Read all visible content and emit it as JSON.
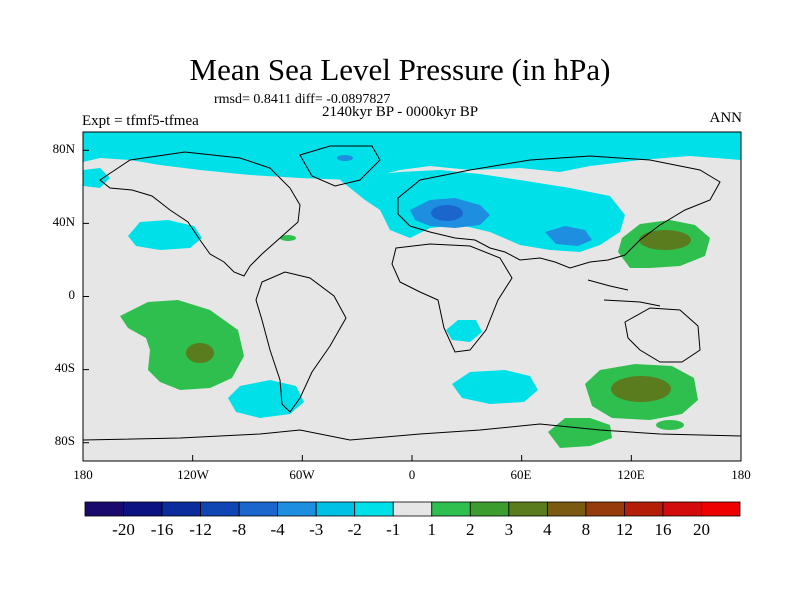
{
  "title": "Mean Sea Level Pressure (in hPa)",
  "stats": "rmsd= 0.8411 diff= -0.0897827",
  "period": "2140kyr BP - 0000kyr BP",
  "experiment": "Expt = tfmf5-tfmea",
  "season": "ANN",
  "map_data": {
    "projection": "cylindrical equidistant",
    "lon_range": [
      -180,
      180
    ],
    "lat_range": [
      -90,
      90
    ],
    "lat_ticks": [
      "80N",
      "40N",
      "0",
      "40S",
      "80S"
    ],
    "lon_ticks": [
      "180",
      "120W",
      "60W",
      "0",
      "60E",
      "120E",
      "180"
    ],
    "anomaly_regions": [
      {
        "name": "Arctic and North Atlantic",
        "level": "-2 to -1"
      },
      {
        "name": "Europe",
        "level": "-3 to -2"
      },
      {
        "name": "Tibet",
        "level": "-3 to -2"
      },
      {
        "name": "North Pacific off California",
        "level": "-2 to -1"
      },
      {
        "name": "Northwest Pacific",
        "level": "2 to 4"
      },
      {
        "name": "Southeast Pacific",
        "level": "2 to 4"
      },
      {
        "name": "South Atlantic / Southern Ocean",
        "level": "-2 to -1"
      },
      {
        "name": "South Indian Ocean",
        "level": "2 to 4"
      },
      {
        "name": "Mozambique Channel",
        "level": "-2 to -1"
      },
      {
        "name": "Off Antarctica south of Australia",
        "level": "1 to 2"
      }
    ]
  },
  "colorbar": {
    "labels": [
      "-20",
      "-16",
      "-12",
      "-8",
      "-4",
      "-3",
      "-2",
      "-1",
      "1",
      "2",
      "3",
      "4",
      "8",
      "12",
      "16",
      "20"
    ],
    "colors": [
      "#1a0a6e",
      "#0c1282",
      "#0a2c9c",
      "#1046b4",
      "#1a66cc",
      "#1e8ee0",
      "#00c0e6",
      "#00e0e8",
      "#e6e6e6",
      "#2fbf4f",
      "#3c9d2e",
      "#5a7c1e",
      "#7a5a10",
      "#963c0c",
      "#b41e08",
      "#d20c0c",
      "#ee0000"
    ]
  },
  "palette": {
    "land_ocean_neutral": "#e6e6e6",
    "neg1": "#00e0e8",
    "neg2": "#1e8ee0",
    "neg3": "#1a66cc",
    "pos1": "#2fbf4f",
    "pos2": "#3c9d2e",
    "pos3": "#5a7c1e"
  }
}
